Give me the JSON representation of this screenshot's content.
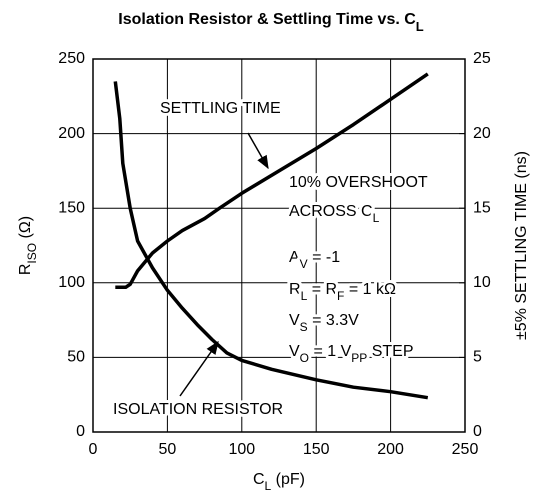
{
  "chart_data": {
    "type": "line",
    "title": [
      "Isolation Resistor & Settling Time vs. C",
      "L"
    ],
    "x_label": [
      "C",
      "L",
      " (pF)"
    ],
    "y_label": [
      "R",
      "ISO",
      " (Ω)"
    ],
    "y2_label": [
      "±5% SETTLING TIME (ns)"
    ],
    "xlim": [
      0,
      250
    ],
    "xticks": [
      0,
      50,
      100,
      150,
      200,
      250
    ],
    "ylim": [
      0,
      250
    ],
    "yticks": [
      0,
      50,
      100,
      150,
      200,
      250
    ],
    "y2lim": [
      0,
      25
    ],
    "y2ticks": [
      0,
      5,
      10,
      15,
      20,
      25
    ],
    "grid": true,
    "series": [
      {
        "name": "ISOLATION RESISTOR",
        "color": "#000000",
        "x": [
          15,
          18,
          20,
          25,
          30,
          40,
          50,
          60,
          70,
          80,
          90,
          100,
          120,
          150,
          175,
          200,
          225
        ],
        "values": [
          235,
          210,
          180,
          150,
          128,
          110,
          95,
          83,
          72,
          62,
          53,
          48,
          42,
          35,
          30,
          27,
          23
        ]
      },
      {
        "name": "SETTLING TIME",
        "color": "#000000",
        "axis": "y2",
        "x": [
          15,
          22,
          25,
          30,
          40,
          50,
          60,
          75,
          85,
          100,
          125,
          150,
          175,
          200,
          225
        ],
        "values": [
          9.7,
          9.7,
          9.9,
          10.8,
          12,
          12.8,
          13.5,
          14.3,
          15,
          16,
          17.5,
          19,
          20.6,
          22.3,
          24
        ]
      }
    ],
    "annotations": [
      [
        "10% OVERSHOOT"
      ],
      [
        "ACROSS C",
        "L"
      ],
      [
        "A",
        "V",
        " = -1"
      ],
      [
        "R",
        "L",
        " = R",
        "F",
        " = 1 kΩ"
      ],
      [
        "V",
        "S",
        " = 3.3V"
      ],
      [
        "V",
        "O",
        " = 1 V",
        "PP",
        " STEP"
      ]
    ]
  }
}
